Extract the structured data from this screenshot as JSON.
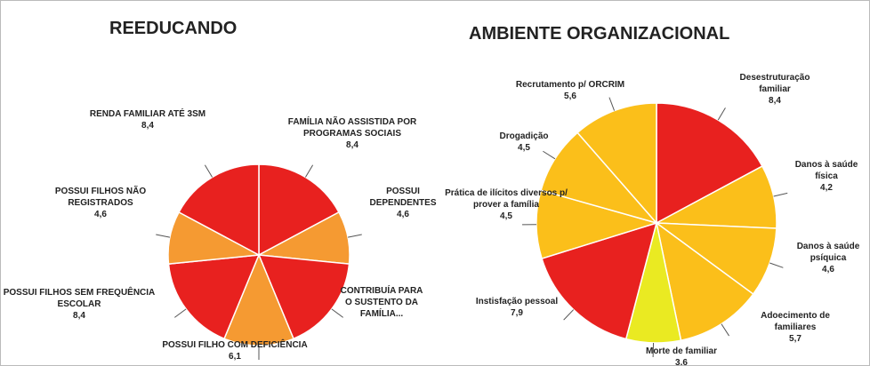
{
  "chart_data": [
    {
      "type": "pie",
      "title": "REEDUCANDO",
      "categories": [
        "FAMÍLIA NÃO ASSISTIDA POR PROGRAMAS SOCIAIS",
        "POSSUI DEPENDENTES",
        "CONTRIBUÍA PARA O SUSTENTO DA FAMÍLIA...",
        "POSSUI FILHO COM DEFICIÊNCIA",
        "POSSUI FILHOS SEM FREQUÊNCIA ESCOLAR",
        "POSSUI FILHOS NÃO REGISTRADOS",
        "RENDA FAMILIAR ATÉ 3SM"
      ],
      "values": [
        8.4,
        4.6,
        8.4,
        6.1,
        8.4,
        4.6,
        8.4
      ],
      "value_labels": [
        "8,4",
        "4,6",
        null,
        "6,1",
        "8,4",
        "4,6",
        "8,4"
      ],
      "colors": [
        "#e8211f",
        "#f59a32",
        "#e8211f",
        "#f59a32",
        "#e8211f",
        "#f59a32",
        "#e8211f"
      ]
    },
    {
      "type": "pie",
      "title": "AMBIENTE ORGANIZACIONAL",
      "categories": [
        "Desestruturação familiar",
        "Danos à saúde física",
        "Danos à saúde psíquica",
        "Adoecimento de familiares",
        "Morte de familiar",
        "Instisfação pessoal",
        "Prática de ilícitos diversos p/ prover a família",
        "Drogadição",
        "Recrutamento p/ ORCRIM"
      ],
      "values": [
        8.4,
        4.2,
        4.6,
        5.7,
        3.6,
        7.9,
        4.5,
        4.5,
        5.6
      ],
      "value_labels": [
        "8,4",
        "4,2",
        "4,6",
        "5,7",
        "3.6",
        "7,9",
        "4,5",
        "4,5",
        "5,6"
      ],
      "colors": [
        "#e8211f",
        "#fbbf1a",
        "#fbbf1a",
        "#fbbf1a",
        "#eaea22",
        "#e8211f",
        "#fbbf1a",
        "#fbbf1a",
        "#fbbf1a"
      ]
    }
  ]
}
